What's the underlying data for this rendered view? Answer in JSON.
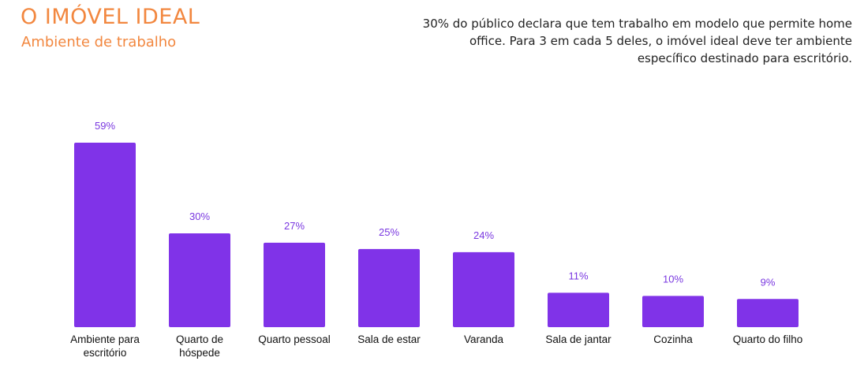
{
  "header": {
    "title": "O IMÓVEL IDEAL",
    "subtitle": "Ambiente de trabalho"
  },
  "note": {
    "text": "30% do público declara que tem trabalho em modelo que permite home office. Para 3 em cada 5 deles, o imóvel ideal deve ter ambiente específico destinado para escritório."
  },
  "chart_data": {
    "type": "bar",
    "categories": [
      [
        "Ambiente para",
        "escritório"
      ],
      [
        "Quarto de",
        "hóspede"
      ],
      [
        "Quarto pessoal"
      ],
      [
        "Sala de estar"
      ],
      [
        "Varanda"
      ],
      [
        "Sala de jantar"
      ],
      [
        "Cozinha"
      ],
      [
        "Quarto do filho"
      ]
    ],
    "values": [
      59,
      30,
      27,
      25,
      24,
      11,
      10,
      9
    ],
    "value_labels": [
      "59%",
      "30%",
      "27%",
      "25%",
      "24%",
      "11%",
      "10%",
      "9%"
    ],
    "title": "",
    "xlabel": "",
    "ylabel": "",
    "ylim": [
      0,
      60
    ],
    "grid": false,
    "legend": "none",
    "colors": {
      "bar": "#8033e8",
      "value_label": "#7a38e0",
      "category_label": "#111111"
    }
  }
}
